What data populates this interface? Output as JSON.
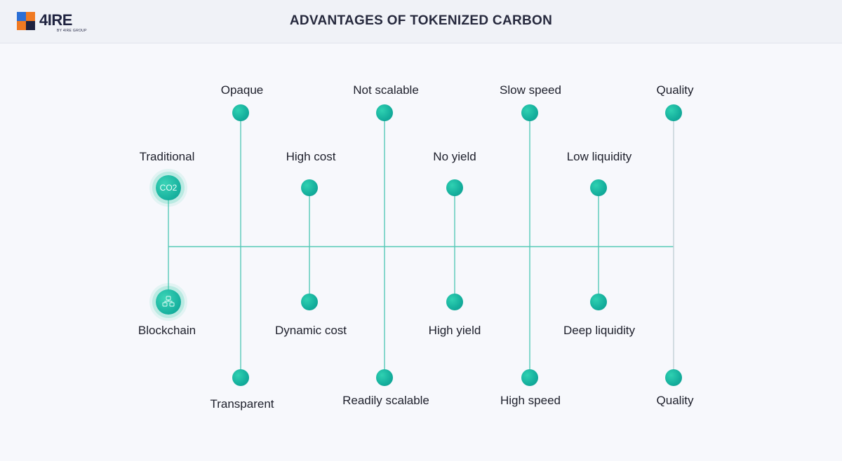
{
  "header": {
    "logo_text": "4IRE",
    "logo_subtext": "BY 4IRE GROUP",
    "title": "ADVANTAGES OF TOKENIZED CARBON"
  },
  "colors": {
    "accent": "#16b09e",
    "line": "#56c9b7",
    "line_faint": "#c2cfd6",
    "logo_blue": "#2b6fd6",
    "logo_orange": "#f07a22",
    "logo_dark": "#1f2340"
  },
  "diagram": {
    "start": {
      "top_label": "Traditional",
      "top_node_text": "CO2",
      "bottom_label": "Blockchain",
      "bottom_icon": "blockchain-nodes-icon"
    },
    "outer": [
      {
        "top": "Opaque",
        "bottom": "Transparent"
      },
      {
        "top": "Not scalable",
        "bottom": "Readily scalable"
      },
      {
        "top": "Slow speed",
        "bottom": "High speed"
      },
      {
        "top": "Quality",
        "bottom": "Quality"
      }
    ],
    "inner": [
      {
        "top": "High cost",
        "bottom": "Dynamic cost"
      },
      {
        "top": "No yield",
        "bottom": "High yield"
      },
      {
        "top": "Low liquidity",
        "bottom": "Deep liquidity"
      }
    ]
  }
}
